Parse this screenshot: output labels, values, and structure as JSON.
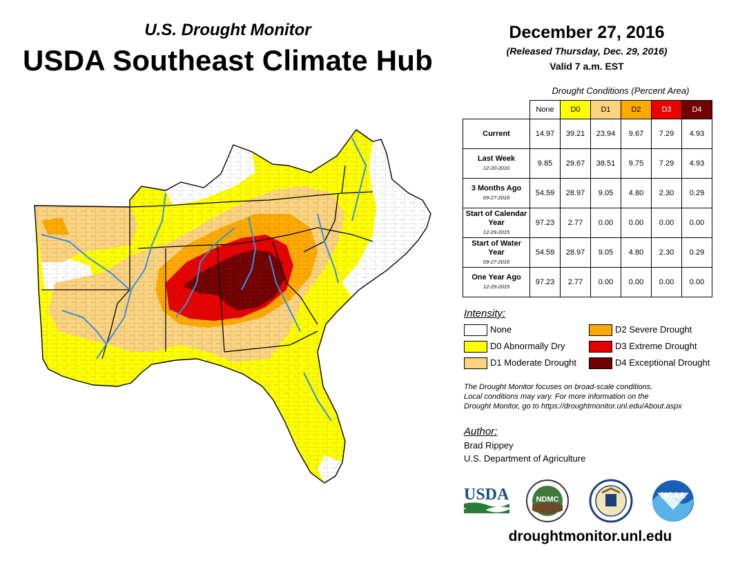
{
  "header": {
    "subtitle": "U.S. Drought Monitor",
    "title": "USDA Southeast Climate Hub",
    "date": "December 27, 2016",
    "released": "(Released Thursday, Dec. 29, 2016)",
    "valid": "Valid 7 a.m. EST"
  },
  "table": {
    "caption": "Drought Conditions (Percent Area)",
    "columns": [
      "None",
      "D0",
      "D1",
      "D2",
      "D3",
      "D4"
    ],
    "column_colors": [
      "#ffffff",
      "#ffff00",
      "#fcd37f",
      "#ffaa00",
      "#e60000",
      "#730000"
    ],
    "rows": [
      {
        "label": "Current",
        "date": "",
        "values": [
          "14.97",
          "39.21",
          "23.94",
          "9.67",
          "7.29",
          "4.93"
        ]
      },
      {
        "label": "Last Week",
        "date": "12-20-2016",
        "values": [
          "9.85",
          "29.67",
          "38.51",
          "9.75",
          "7.29",
          "4.93"
        ]
      },
      {
        "label": "3 Months Ago",
        "date": "09-27-2016",
        "values": [
          "54.59",
          "28.97",
          "9.05",
          "4.80",
          "2.30",
          "0.29"
        ]
      },
      {
        "label": "Start of Calendar Year",
        "date": "12-29-2015",
        "values": [
          "97.23",
          "2.77",
          "0.00",
          "0.00",
          "0.00",
          "0.00"
        ]
      },
      {
        "label": "Start of Water Year",
        "date": "09-27-2016",
        "values": [
          "54.59",
          "28.97",
          "9.05",
          "4.80",
          "2.30",
          "0.29"
        ]
      },
      {
        "label": "One Year Ago",
        "date": "12-29-2015",
        "values": [
          "97.23",
          "2.77",
          "0.00",
          "0.00",
          "0.00",
          "0.00"
        ]
      }
    ]
  },
  "legend": {
    "title": "Intensity:",
    "items": [
      {
        "label": "None",
        "color": "#ffffff"
      },
      {
        "label": "D0 Abnormally Dry",
        "color": "#ffff00"
      },
      {
        "label": "D1 Moderate Drought",
        "color": "#fcd37f"
      },
      {
        "label": "D2 Severe Drought",
        "color": "#ffaa00"
      },
      {
        "label": "D3 Extreme Drought",
        "color": "#e60000"
      },
      {
        "label": "D4 Exceptional Drought",
        "color": "#730000"
      }
    ]
  },
  "note": {
    "line1": "The Drought Monitor focuses on broad-scale conditions.",
    "line2": "Local conditions may vary. For more information on the",
    "line3": "Drought Monitor, go to https://droughtmonitor.unl.edu/About.aspx"
  },
  "author": {
    "title": "Author:",
    "name": "Brad Rippey",
    "org": "U.S. Department of Agriculture"
  },
  "logos": {
    "usda": "USDA",
    "ndmc": "NDMC",
    "noaa": "NOAA"
  },
  "website": "droughtmonitor.unl.edu",
  "colors": {
    "water": "#3a8fd9",
    "outline": "#000000"
  }
}
